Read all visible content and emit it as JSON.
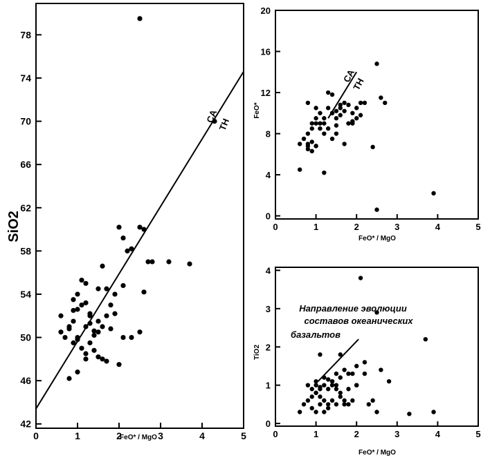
{
  "colors": {
    "ink": "#000000",
    "background": "#ffffff"
  },
  "chart_data": [
    {
      "type": "scatter",
      "xlabel": "FeO* / MgO",
      "ylabel": "SiO2",
      "xlim": [
        0,
        5
      ],
      "ylim": [
        42,
        80
      ],
      "x_ticks": [
        0,
        1,
        2,
        3,
        4,
        5
      ],
      "x_tick_labels": [
        "0",
        "1",
        "2",
        "3",
        "4",
        "5"
      ],
      "y_ticks": [
        42,
        46,
        50,
        54,
        58,
        62,
        66,
        70,
        74,
        78
      ],
      "y_tick_labels": [
        "42",
        "46",
        "50",
        "54",
        "58",
        "62",
        "66",
        "70",
        "74",
        "78"
      ],
      "divider_line": {
        "x": [
          0,
          5
        ],
        "y": [
          43.4,
          74.6
        ]
      },
      "annotations": [
        "CA",
        "TH"
      ],
      "points": {
        "x": [
          2.5,
          0.6,
          0.9,
          1.0,
          1.1,
          1.2,
          0.8,
          0.9,
          1.3,
          1.0,
          1.2,
          0.6,
          0.7,
          0.9,
          1.1,
          1.3,
          1.4,
          1.5,
          1.6,
          1.5,
          1.7,
          1.8,
          1.9,
          0.8,
          1.0,
          1.2,
          1.4,
          1.0,
          1.2,
          1.5,
          1.6,
          1.7,
          1.8,
          2.0,
          2.1,
          2.3,
          2.5,
          2.6,
          2.6,
          2.1,
          2.0,
          2.2,
          0.8,
          0.9,
          1.0,
          1.1,
          1.3,
          1.2,
          1.5,
          1.4,
          1.9,
          2.5,
          2.7,
          2.8,
          3.2,
          3.7,
          4.3,
          1.7,
          2.1,
          2.3,
          1.6,
          1.3
        ],
        "y": [
          79.5,
          52.0,
          53.5,
          54.0,
          55.3,
          55.0,
          51.0,
          52.5,
          52.0,
          50.0,
          51.0,
          50.5,
          50.0,
          49.5,
          49.0,
          49.5,
          50.2,
          50.5,
          51.0,
          51.5,
          52.0,
          53.0,
          54.0,
          46.2,
          46.8,
          48.0,
          48.8,
          49.8,
          48.5,
          48.2,
          48.0,
          47.8,
          50.8,
          47.5,
          50.0,
          50.0,
          50.5,
          54.2,
          60.0,
          59.2,
          60.2,
          58.0,
          50.8,
          51.5,
          52.6,
          53.0,
          52.2,
          53.2,
          54.5,
          50.6,
          52.2,
          60.2,
          57.0,
          57.0,
          57.0,
          56.8,
          70.0,
          54.5,
          54.8,
          58.2,
          56.6,
          51.3
        ]
      }
    },
    {
      "type": "scatter",
      "xlabel": "FeO* / MgO",
      "ylabel": "FeO*",
      "xlim": [
        0,
        5
      ],
      "ylim": [
        0,
        20
      ],
      "x_ticks": [
        0,
        1,
        2,
        3,
        4,
        5
      ],
      "x_tick_labels": [
        "0",
        "1",
        "2",
        "3",
        "4",
        "5"
      ],
      "y_ticks": [
        0,
        4,
        8,
        12,
        16,
        20
      ],
      "y_tick_labels": [
        "0",
        "4",
        "8",
        "12",
        "16",
        "20"
      ],
      "divider_line": {
        "x": [
          1.3,
          2.0
        ],
        "y": [
          9.5,
          14.0
        ]
      },
      "annotations": [
        "CA",
        "TH"
      ],
      "points": {
        "x": [
          0.6,
          0.7,
          0.8,
          0.8,
          0.9,
          0.9,
          1.0,
          1.0,
          1.1,
          1.1,
          1.2,
          0.8,
          0.9,
          1.0,
          1.0,
          1.1,
          1.2,
          1.3,
          1.4,
          1.4,
          1.5,
          1.5,
          1.6,
          1.7,
          1.8,
          1.9,
          2.0,
          2.1,
          2.2,
          1.3,
          1.4,
          1.5,
          1.6,
          1.7,
          1.9,
          2.0,
          2.1,
          0.8,
          0.9,
          1.2,
          1.3,
          1.6,
          1.8,
          2.4,
          2.5,
          2.5,
          2.6,
          2.7,
          3.9,
          0.6,
          0.8,
          1.0,
          1.2,
          1.4,
          1.5,
          1.7,
          1.9
        ],
        "y": [
          7.0,
          7.5,
          8.0,
          11.0,
          9.0,
          8.5,
          9.5,
          9.0,
          10.0,
          8.5,
          9.0,
          6.5,
          6.3,
          6.8,
          10.5,
          9.0,
          9.5,
          10.5,
          10.0,
          11.8,
          10.2,
          9.5,
          10.5,
          11.0,
          10.8,
          10.0,
          10.5,
          11.0,
          11.0,
          8.5,
          7.5,
          8.0,
          9.8,
          7.0,
          9.0,
          9.5,
          9.8,
          6.8,
          7.2,
          4.2,
          12.0,
          10.8,
          9.0,
          6.7,
          14.8,
          0.6,
          11.5,
          11.0,
          2.2,
          4.5,
          7.0,
          6.8,
          8.0,
          10.0,
          8.8,
          10.2,
          9.2
        ]
      }
    },
    {
      "type": "scatter",
      "xlabel": "FeO* / MgO",
      "ylabel": "TiO2",
      "xlim": [
        0,
        5
      ],
      "ylim": [
        0,
        4
      ],
      "x_ticks": [
        0,
        1,
        2,
        3,
        4,
        5
      ],
      "x_tick_labels": [
        "0",
        "1",
        "2",
        "3",
        "4",
        "5"
      ],
      "y_ticks": [
        0,
        1,
        2,
        3,
        4
      ],
      "y_tick_labels": [
        "0",
        "1",
        "2",
        "3",
        "4"
      ],
      "divider_line": {
        "x": [
          1.05,
          2.05
        ],
        "y": [
          1.1,
          2.2
        ]
      },
      "annotations": [
        "Направление эволюции",
        "составов океанических",
        "базальтов"
      ],
      "points": {
        "x": [
          2.1,
          2.5,
          3.7,
          1.1,
          1.6,
          2.0,
          2.2,
          1.0,
          1.2,
          1.4,
          1.5,
          1.6,
          1.7,
          1.8,
          1.9,
          2.0,
          2.2,
          2.6,
          2.8,
          0.6,
          0.7,
          0.8,
          0.9,
          1.0,
          1.1,
          1.2,
          1.3,
          1.4,
          1.5,
          1.6,
          1.7,
          1.8,
          0.8,
          0.9,
          1.0,
          1.1,
          1.2,
          1.3,
          1.4,
          1.5,
          1.6,
          1.8,
          2.0,
          2.4,
          2.5,
          3.3,
          3.9,
          0.9,
          1.0,
          1.1,
          1.2,
          1.3,
          1.5,
          1.7,
          1.9,
          2.3,
          1.3,
          1.4,
          1.1,
          1.0
        ],
        "y": [
          3.8,
          2.9,
          2.2,
          1.8,
          1.8,
          1.5,
          1.3,
          1.1,
          1.2,
          1.0,
          1.3,
          1.2,
          1.4,
          1.3,
          1.3,
          1.0,
          1.6,
          1.4,
          1.1,
          0.3,
          0.5,
          0.6,
          0.7,
          0.8,
          0.7,
          0.6,
          0.5,
          0.6,
          0.9,
          0.8,
          0.6,
          0.5,
          1.0,
          0.9,
          0.8,
          0.9,
          1.0,
          0.9,
          1.1,
          1.0,
          0.7,
          0.9,
          1.0,
          0.6,
          0.3,
          0.25,
          0.3,
          0.4,
          0.3,
          0.5,
          0.3,
          0.4,
          0.5,
          0.5,
          0.6,
          0.5,
          1.15,
          1.1,
          0.95,
          1.0
        ]
      }
    }
  ]
}
